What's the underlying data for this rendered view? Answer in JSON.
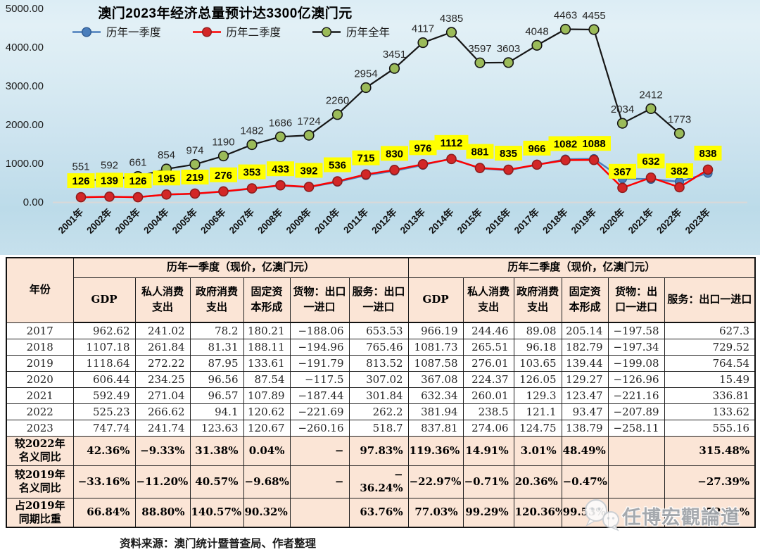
{
  "colors": {
    "header_bg": "#fbe5d6",
    "negative": "#fe0000",
    "chart_label_bg": "#ffff00",
    "q1_blue": "#4a7ebb",
    "q2_red": "#fe0000",
    "full_year_black": "#161616",
    "full_year_marker": "#9bbb59"
  },
  "chart_data": {
    "type": "line",
    "title": "澳门2023年经济总量预计达3300亿澳门元",
    "label_bg": "#ffff00",
    "y_axis": {
      "labels": [
        "5000.00",
        "4000.00",
        "3000.00",
        "2000.00",
        "1000.00",
        "0.00"
      ],
      "min": 0,
      "max": 5000
    },
    "categories": [
      "2001年",
      "2002年",
      "2003年",
      "2004年",
      "2005年",
      "2006年",
      "2007年",
      "2008年",
      "2009年",
      "2010年",
      "2011年",
      "2012年",
      "2013年",
      "2014年",
      "2015年",
      "2016年",
      "2017年",
      "2018年",
      "2019年",
      "2020年",
      "2021年",
      "2022年",
      "2023年"
    ],
    "series": [
      {
        "name": "历年一季度",
        "line_color": "#4a7ebb",
        "marker_color": "#4a7ebb",
        "marker_stroke": "#2e5a92",
        "show_labels": false,
        "label_style": "none",
        "values": [
          122,
          136,
          130,
          190,
          214,
          270,
          344,
          424,
          383,
          520,
          690,
          805,
          955,
          1125,
          868,
          820,
          963,
          1107,
          1119,
          606,
          592,
          525,
          748
        ]
      },
      {
        "name": "历年二季度",
        "line_color": "#fe0000",
        "marker_color": "#d32727",
        "marker_stroke": "#8f1d1d",
        "show_labels": true,
        "label_style": "yellow-box",
        "values": [
          126,
          139,
          126,
          195,
          219,
          276,
          353,
          433,
          392,
          536,
          715,
          830,
          976,
          1112,
          881,
          835,
          966,
          1082,
          1088,
          367,
          632,
          382,
          838
        ]
      },
      {
        "name": "历年全年",
        "line_color": "#161616",
        "marker_color": "#9bbb59",
        "marker_stroke": "#161616",
        "show_labels": true,
        "label_style": "plain",
        "values": [
          551,
          592,
          661,
          854,
          974,
          1190,
          1482,
          1686,
          1724,
          2260,
          2954,
          3451,
          4117,
          4385,
          3597,
          3603,
          4048,
          4463,
          4455,
          2034,
          2412,
          1773,
          null
        ]
      }
    ]
  },
  "table": {
    "year_header": "年份",
    "col_groups": [
      "历年一季度（现价，亿澳门元）",
      "历年二季度（现价，亿澳门元）"
    ],
    "sub_headers": [
      "GDP",
      "私人消费支出",
      "政府消费支出",
      "固定资本形成",
      "货物：出口一进口",
      "服务：出口一进口"
    ],
    "rows": [
      {
        "year": "2017",
        "q1": [
          "962.62",
          "241.02",
          "78.2",
          "180.21",
          "−188.06",
          "653.53"
        ],
        "q2": [
          "966.19",
          "244.46",
          "89.08",
          "205.14",
          "−197.58",
          "627.3"
        ]
      },
      {
        "year": "2018",
        "q1": [
          "1107.18",
          "261.84",
          "81.31",
          "188.11",
          "−194.96",
          "765.46"
        ],
        "q2": [
          "1081.73",
          "265.51",
          "96.18",
          "182.79",
          "−197.34",
          "729.52"
        ]
      },
      {
        "year": "2019",
        "q1": [
          "1118.64",
          "272.22",
          "87.95",
          "133.61",
          "−191.79",
          "813.52"
        ],
        "q2": [
          "1087.58",
          "276.01",
          "103.65",
          "139.44",
          "−199.08",
          "764.54"
        ]
      },
      {
        "year": "2020",
        "q1": [
          "606.44",
          "234.25",
          "96.56",
          "87.54",
          "−117.5",
          "307.02"
        ],
        "q2": [
          "367.08",
          "224.37",
          "126.05",
          "129.27",
          "−126.96",
          "15.49"
        ]
      },
      {
        "year": "2021",
        "q1": [
          "592.49",
          "271.04",
          "96.57",
          "107.89",
          "−187.44",
          "301.84"
        ],
        "q2": [
          "632.34",
          "260.01",
          "129.3",
          "123.47",
          "−221.16",
          "336.81"
        ]
      },
      {
        "year": "2022",
        "q1": [
          "525.23",
          "266.62",
          "94.1",
          "120.62",
          "−221.69",
          "262.2"
        ],
        "q2": [
          "381.94",
          "238.5",
          "121.1",
          "93.47",
          "−207.89",
          "133.62"
        ]
      },
      {
        "year": "2023",
        "q1": [
          "747.74",
          "241.74",
          "123.63",
          "120.67",
          "−260.16",
          "518.7"
        ],
        "q2": [
          "837.81",
          "274.06",
          "124.75",
          "138.79",
          "−258.11",
          "555.16"
        ]
      }
    ],
    "summary_rows": [
      {
        "label": "较2022年\n名义同比",
        "q1": [
          "42.36%",
          "−9.33%",
          "31.38%",
          "0.04%",
          "−",
          "97.83%"
        ],
        "q2": [
          "119.36%",
          "14.91%",
          "3.01%",
          "48.49%",
          "",
          "315.48%"
        ]
      },
      {
        "label": "较2019年\n名义同比",
        "q1": [
          "−33.16%",
          "−11.20%",
          "40.57%",
          "−9.68%",
          "−",
          "−\n36.24%"
        ],
        "q2": [
          "−22.97%",
          "−0.71%",
          "20.36%",
          "−0.47%",
          "",
          "−27.39%"
        ]
      },
      {
        "label": "占2019年\n同期比重",
        "q1": [
          "66.84%",
          "88.80%",
          "140.57%",
          "90.32%",
          "",
          "63.76%"
        ],
        "q2": [
          "77.03%",
          "99.29%",
          "120.36%",
          "99.53%",
          "",
          "72.61%"
        ]
      }
    ]
  },
  "footer": {
    "source": "资料来源：澳门统计暨普查局、作者整理"
  },
  "watermark": {
    "text": "任博宏觀論道"
  }
}
